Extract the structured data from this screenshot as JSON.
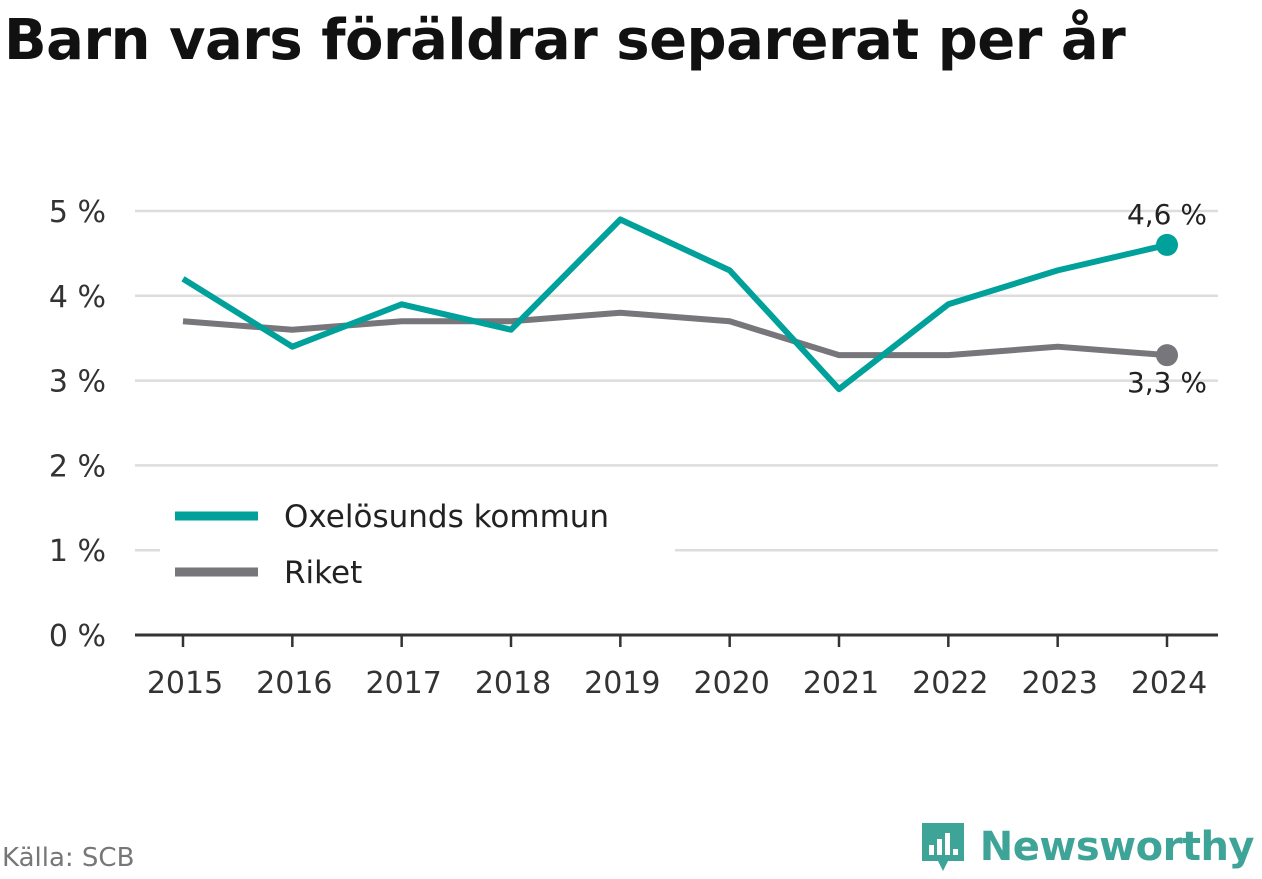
{
  "title": "Barn vars föräldrar separerat per år",
  "source": "Källa: SCB",
  "brand": {
    "name": "Newsworthy",
    "icon": "newsworthy-logo-icon",
    "color": "#3ea498"
  },
  "chart_data": {
    "type": "line",
    "title": "Barn vars föräldrar separerat per år",
    "xlabel": "",
    "ylabel": "",
    "x": [
      "2015",
      "2016",
      "2017",
      "2018",
      "2019",
      "2020",
      "2021",
      "2022",
      "2023",
      "2024"
    ],
    "ylim": [
      0,
      5
    ],
    "yticks": [
      0,
      1,
      2,
      3,
      4,
      5
    ],
    "ytick_labels": [
      "0 %",
      "1 %",
      "2 %",
      "3 %",
      "4 %",
      "5 %"
    ],
    "grid": true,
    "legend_position": "bottom-left",
    "series": [
      {
        "name": "Oxelösunds kommun",
        "color": "#00a19a",
        "values": [
          4.2,
          3.4,
          3.9,
          3.6,
          4.9,
          4.3,
          2.9,
          3.9,
          4.3,
          4.6
        ],
        "end_label": "4,6 %"
      },
      {
        "name": "Riket",
        "color": "#76767b",
        "values": [
          3.7,
          3.6,
          3.7,
          3.7,
          3.8,
          3.7,
          3.3,
          3.3,
          3.4,
          3.3
        ],
        "end_label": "3,3 %"
      }
    ]
  }
}
